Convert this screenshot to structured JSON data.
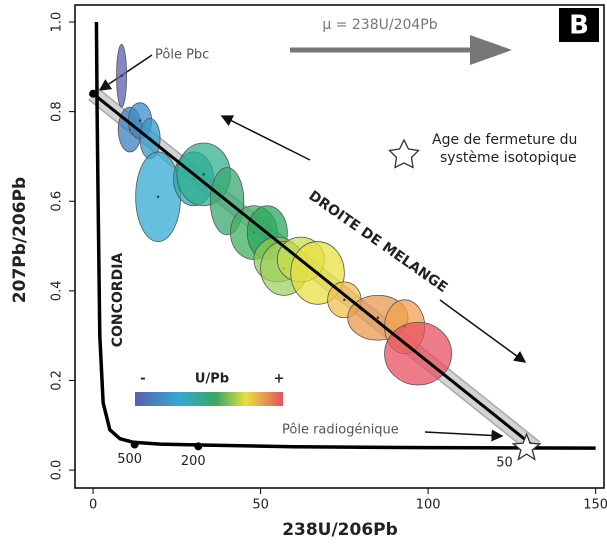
{
  "chart_data": {
    "type": "scatter",
    "title": "B",
    "x_label": "238U/206Pb",
    "y_label": "207Pb/206Pb",
    "xlim": [
      -5.4,
      152.5
    ],
    "ylim": [
      -0.04,
      1.038
    ],
    "xticks": [
      0,
      50,
      100,
      150
    ],
    "yticks": [
      {
        "value": 0,
        "label": "0.0"
      },
      0.2,
      0.4,
      0.6,
      0.8,
      {
        "value": 1,
        "label": "1.0"
      }
    ],
    "ellipses": {
      "x": [
        8.5,
        11,
        14,
        17,
        19.4,
        30,
        33,
        40,
        48,
        52,
        55,
        57,
        62,
        67,
        75,
        85,
        93,
        97
      ],
      "values": [
        0.88,
        0.76,
        0.78,
        0.74,
        0.61,
        0.65,
        0.66,
        0.6,
        0.53,
        0.53,
        0.47,
        0.45,
        0.47,
        0.44,
        0.38,
        0.34,
        0.32,
        0.26
      ],
      "x_err": [
        1.5,
        3.5,
        3.5,
        3,
        6.7,
        6,
        8,
        5,
        7,
        6,
        7,
        7,
        7,
        8,
        5,
        9,
        6,
        10
      ],
      "y_err": [
        0.07,
        0.05,
        0.04,
        0.045,
        0.1,
        0.06,
        0.07,
        0.075,
        0.06,
        0.06,
        0.05,
        0.06,
        0.05,
        0.07,
        0.04,
        0.05,
        0.06,
        0.07
      ],
      "colors": [
        "#5a5fb0",
        "#3f7fc0",
        "#3a8cc8",
        "#3399cc",
        "#33aad0",
        "#2aa8b0",
        "#30b090",
        "#3aa870",
        "#40b060",
        "#2aa860",
        "#8ec850",
        "#a0d060",
        "#c8dc50",
        "#e8e040",
        "#f0c050",
        "#e89a50",
        "#f0a050",
        "#e85060"
      ]
    },
    "series": [
      {
        "name": "CONCORDIA",
        "color": "#000000",
        "x": [
          1,
          1.2,
          1.5,
          2,
          3,
          5,
          8,
          12,
          20,
          32,
          60,
          100,
          150
        ],
        "values": [
          1.0,
          0.8,
          0.6,
          0.3,
          0.15,
          0.09,
          0.07,
          0.062,
          0.058,
          0.056,
          0.052,
          0.05,
          0.049
        ]
      },
      {
        "name": "DROITE DE MELANGE",
        "color": "#000000",
        "x": [
          0,
          132
        ],
        "values": [
          0.84,
          0.05
        ]
      }
    ],
    "concordia_ages": {
      "x": [
        12.4,
        31.4,
        127
      ],
      "values": [
        0.057,
        0.053,
        0.049
      ],
      "labels": [
        "500",
        "200",
        "50"
      ]
    },
    "mu_label": "μ = 238U/204Pb",
    "pole_pbc": "Pôle Pbc",
    "pole_radiogenique": "Pôle radiogénique",
    "star_legend": [
      "Age de fermeture du",
      "système isotopique"
    ],
    "colorbar": {
      "label": "U/Pb",
      "low": "-",
      "high": "+"
    }
  }
}
